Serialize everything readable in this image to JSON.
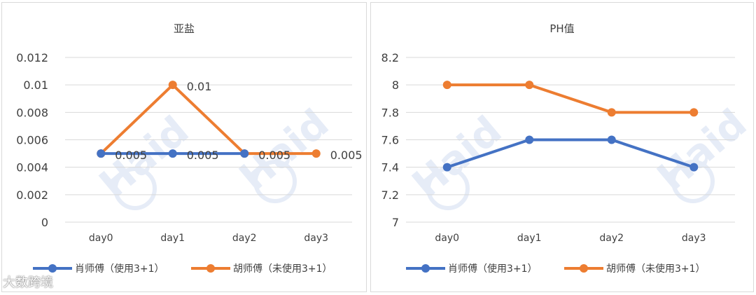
{
  "chart_data": [
    {
      "type": "line",
      "title": "亚盐",
      "categories": [
        "day0",
        "day1",
        "day2",
        "day3"
      ],
      "ylim": [
        0,
        0.012
      ],
      "yticks": [
        "0",
        "0.002",
        "0.004",
        "0.006",
        "0.008",
        "0.01",
        "0.012"
      ],
      "ytick_values": [
        0,
        0.002,
        0.004,
        0.006,
        0.008,
        0.01,
        0.012
      ],
      "grid": true,
      "legend_position": "bottom",
      "series": [
        {
          "name": "肖师傅（使用3+1）",
          "color": "#4472C4",
          "values": [
            0.005,
            0.005,
            0.005,
            null
          ],
          "data_labels": [
            "0.005",
            "0.005",
            "0.005",
            null
          ]
        },
        {
          "name": "胡师傅（未使用3+1）",
          "color": "#ED7D31",
          "values": [
            0.005,
            0.01,
            0.005,
            0.005
          ],
          "data_labels": [
            null,
            "0.01",
            null,
            "0.005"
          ]
        }
      ]
    },
    {
      "type": "line",
      "title": "PH值",
      "categories": [
        "day0",
        "day1",
        "day2",
        "day3"
      ],
      "ylim": [
        7,
        8.2
      ],
      "yticks": [
        "7",
        "7.2",
        "7.4",
        "7.6",
        "7.8",
        "8",
        "8.2"
      ],
      "ytick_values": [
        7,
        7.2,
        7.4,
        7.6,
        7.8,
        8,
        8.2
      ],
      "grid": true,
      "legend_position": "bottom",
      "series": [
        {
          "name": "肖师傅（使用3+1）",
          "color": "#4472C4",
          "values": [
            7.4,
            7.6,
            7.6,
            7.4
          ]
        },
        {
          "name": "胡师傅（未使用3+1）",
          "color": "#ED7D31",
          "values": [
            8,
            8,
            7.8,
            7.8
          ]
        }
      ]
    }
  ],
  "watermark": {
    "brand": "Haid",
    "corner_text": "大数跨境"
  }
}
